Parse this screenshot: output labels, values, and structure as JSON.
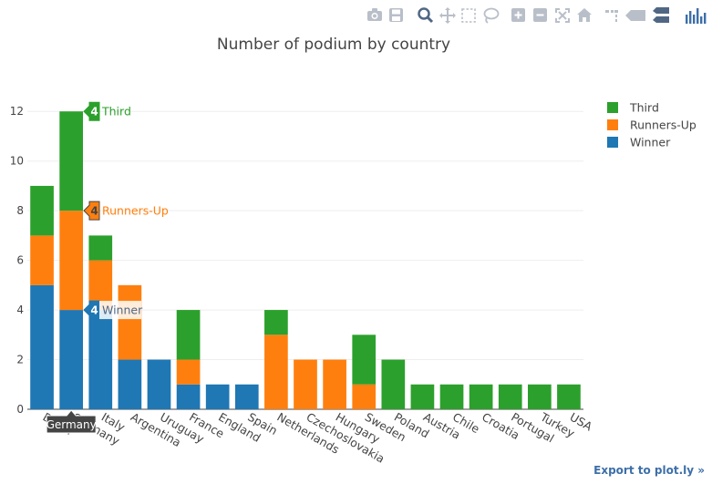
{
  "chart_data": {
    "type": "bar",
    "stacked": true,
    "title": "Number of podium by country",
    "xlabel": "",
    "ylabel": "",
    "ylim": [
      0,
      13
    ],
    "yticks": [
      0,
      2,
      4,
      6,
      8,
      10,
      12
    ],
    "grid": true,
    "legend_position": "top-right",
    "categories": [
      "Brazil",
      "Germany",
      "Italy",
      "Argentina",
      "Uruguay",
      "France",
      "England",
      "Spain",
      "Netherlands",
      "Czechoslovakia",
      "Hungary",
      "Sweden",
      "Poland",
      "Austria",
      "Chile",
      "Croatia",
      "Portugal",
      "Turkey",
      "USA"
    ],
    "series": [
      {
        "name": "Winner",
        "color": "#1f77b4",
        "values": [
          5,
          4,
          4,
          2,
          2,
          1,
          1,
          1,
          0,
          0,
          0,
          0,
          0,
          0,
          0,
          0,
          0,
          0,
          0
        ]
      },
      {
        "name": "Runners-Up",
        "color": "#ff7f0e",
        "values": [
          2,
          4,
          2,
          3,
          0,
          1,
          0,
          0,
          3,
          2,
          2,
          1,
          0,
          0,
          0,
          0,
          0,
          0,
          0
        ]
      },
      {
        "name": "Third",
        "color": "#2ca02c",
        "values": [
          2,
          4,
          1,
          0,
          0,
          2,
          0,
          0,
          1,
          0,
          0,
          2,
          2,
          1,
          1,
          1,
          1,
          1,
          1
        ]
      }
    ],
    "legend": [
      "Third",
      "Runners-Up",
      "Winner"
    ],
    "hover": {
      "category": "Germany",
      "labels": [
        {
          "series": "Third",
          "value": "4",
          "text": "Third"
        },
        {
          "series": "Runners-Up",
          "value": "4",
          "text": "Runners-Up"
        },
        {
          "series": "Winner",
          "value": "4",
          "text": "Winner"
        }
      ]
    }
  },
  "modebar": {
    "icons": [
      "camera-icon",
      "save-icon",
      "zoom-icon",
      "pan-icon",
      "box-select-icon",
      "lasso-select-icon",
      "zoom-in-icon",
      "zoom-out-icon",
      "autoscale-icon",
      "reset-axes-icon",
      "spike-lines-icon",
      "hover-closest-icon",
      "hover-compare-icon",
      "plotly-logo-icon"
    ]
  },
  "export_link": "Export to plot.ly »"
}
